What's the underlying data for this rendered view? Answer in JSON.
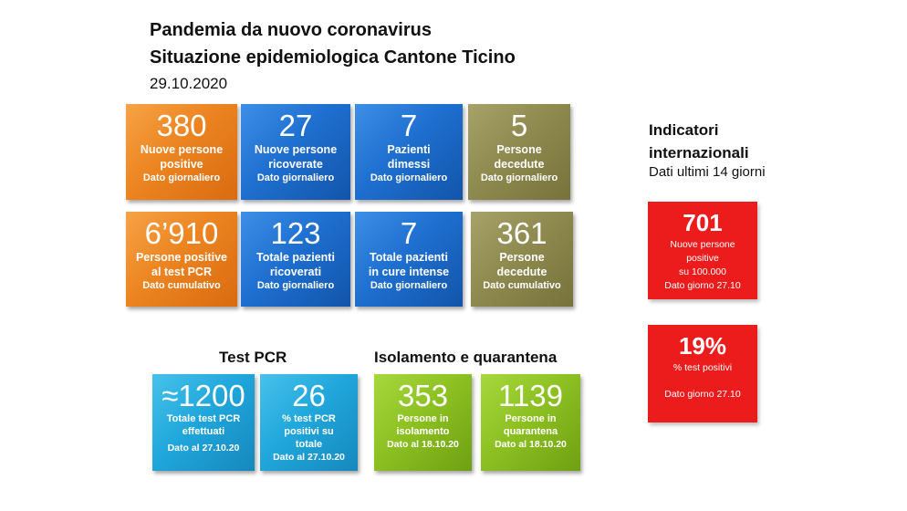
{
  "header": {
    "title_line1": "Pandemia da nuovo coronavirus",
    "title_line2": "Situazione epidemiologica Cantone Ticino",
    "date": "29.10.2020"
  },
  "daily_row": [
    {
      "value": "380",
      "label_l1": "Nuove persone",
      "label_l2": "positive",
      "note": "Dato giornaliero",
      "color": "#ec8420"
    },
    {
      "value": "27",
      "label_l1": "Nuove persone",
      "label_l2": "ricoverate",
      "note": "Dato giornaliero",
      "color": "#1e6fd0"
    },
    {
      "value": "7",
      "label_l1": "Pazienti",
      "label_l2": "dimessi",
      "note": "Dato giornaliero",
      "color": "#1e6fd0"
    },
    {
      "value": "5",
      "label_l1": "Persone",
      "label_l2": "decedute",
      "note": "Dato giornaliero",
      "color": "#8f8a4f"
    }
  ],
  "cumulative_row": [
    {
      "value": "6’910",
      "label_l1": "Persone positive",
      "label_l2": "al test PCR",
      "note": "Dato cumulativo",
      "color": "#ec8420"
    },
    {
      "value": "123",
      "label_l1": "Totale pazienti",
      "label_l2": "ricoverati",
      "note": "Dato giornaliero",
      "color": "#1e6fd0"
    },
    {
      "value": "7",
      "label_l1": "Totale pazienti",
      "label_l2": "in cure intense",
      "note": "Dato giornaliero",
      "color": "#1e6fd0"
    },
    {
      "value": "361",
      "label_l1": "Persone",
      "label_l2": "decedute",
      "note": "Dato cumulativo",
      "color": "#8f8a4f"
    }
  ],
  "test_pcr": {
    "heading": "Test PCR",
    "tiles": [
      {
        "value": "≈1200",
        "label_l1": "Totale test PCR",
        "label_l2": "effettuati",
        "label_l3": "",
        "note": "Dato al 27.10.20"
      },
      {
        "value": "26",
        "label_l1": "% test PCR",
        "label_l2": "positivi su",
        "label_l3": "totale",
        "note": "Dato al 27.10.20"
      }
    ]
  },
  "isolation": {
    "heading": "Isolamento e quarantena",
    "tiles": [
      {
        "value": "353",
        "label_l1": "Persone in",
        "label_l2": "isolamento",
        "note": "Dato al 18.10.20"
      },
      {
        "value": "1139",
        "label_l1": "Persone in",
        "label_l2": "quarantena",
        "note": "Dato al 18.10.20"
      }
    ]
  },
  "international": {
    "title_l1": "Indicatori",
    "title_l2": "internazionali",
    "subtitle": "Dati ultimi 14 giorni",
    "tiles": [
      {
        "value": "701",
        "label_l1": "Nuove persone",
        "label_l2": "positive",
        "label_l3": "su 100.000",
        "note": "Dato giorno 27.10"
      },
      {
        "value": "19%",
        "label_l1": "% test positivi",
        "note": "Dato giorno 27.10"
      }
    ],
    "color": "#ec1c1c"
  }
}
